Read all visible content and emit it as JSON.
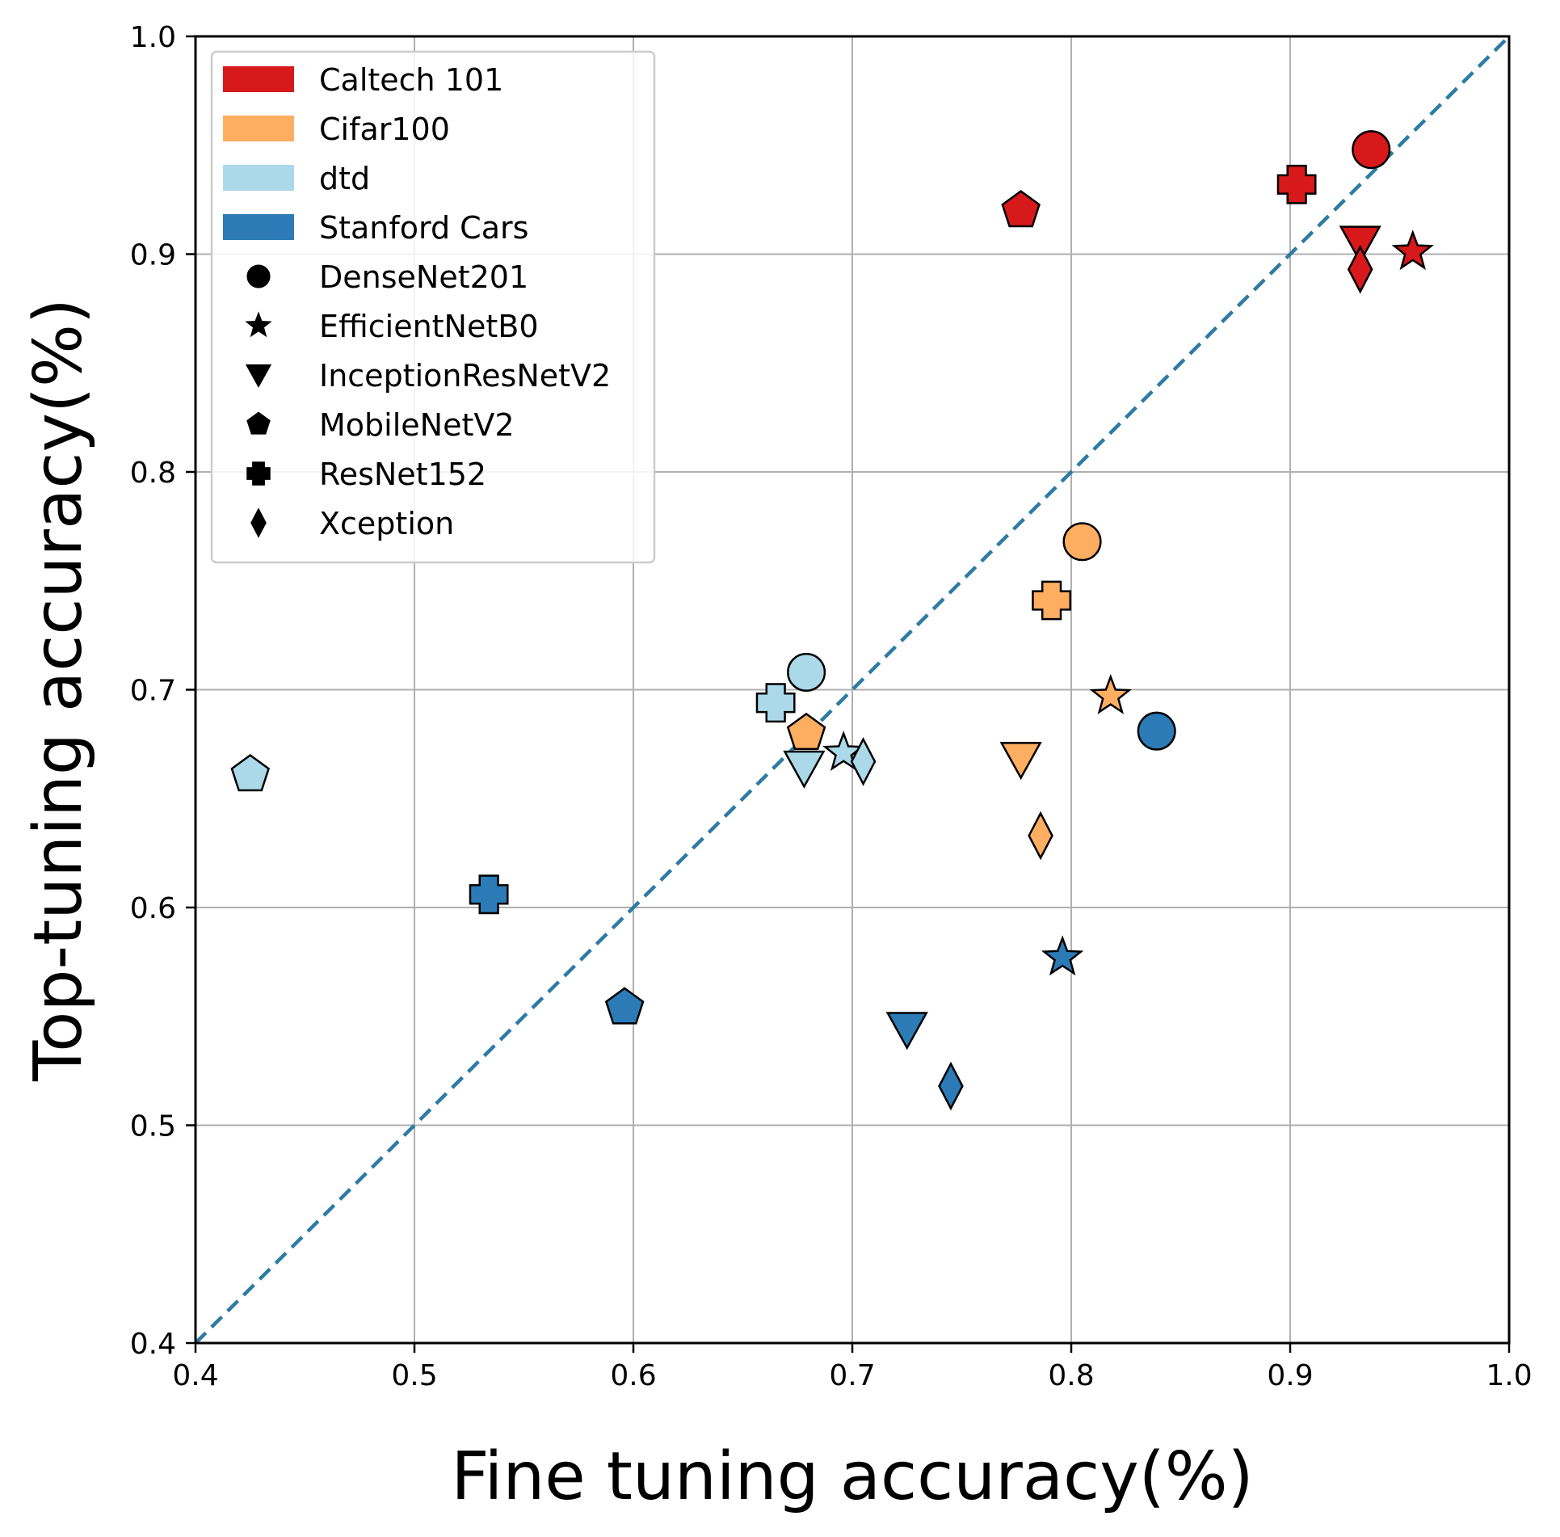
{
  "chart_data": {
    "type": "scatter",
    "title": "",
    "xlabel": "Fine tuning accuracy(%)",
    "ylabel": "Top-tuning accuracy(%)",
    "xlim": [
      0.4,
      1.0
    ],
    "ylim": [
      0.4,
      1.0
    ],
    "xticks": [
      "0.4",
      "0.5",
      "0.6",
      "0.7",
      "0.8",
      "0.9",
      "1.0"
    ],
    "yticks": [
      "0.4",
      "0.5",
      "0.6",
      "0.7",
      "0.8",
      "0.9",
      "1.0"
    ],
    "grid": true,
    "legend_position": "top-left",
    "reference_line": {
      "x": [
        0.4,
        1.0
      ],
      "y": [
        0.4,
        1.0
      ],
      "style": "dashed",
      "color": "#2e7ba3"
    },
    "datasets": [
      {
        "name": "Caltech 101",
        "color": "#d7191c"
      },
      {
        "name": "Cifar100",
        "color": "#fdae61"
      },
      {
        "name": "dtd",
        "color": "#abd9e9"
      },
      {
        "name": "Stanford Cars",
        "color": "#2c7bb6"
      }
    ],
    "models": [
      {
        "name": "DenseNet201",
        "marker": "circle"
      },
      {
        "name": "EfficientNetB0",
        "marker": "star"
      },
      {
        "name": "InceptionResNetV2",
        "marker": "triangle-down"
      },
      {
        "name": "MobileNetV2",
        "marker": "pentagon"
      },
      {
        "name": "ResNet152",
        "marker": "x"
      },
      {
        "name": "Xception",
        "marker": "diamond"
      }
    ],
    "points": [
      {
        "dataset": "Caltech 101",
        "model": "DenseNet201",
        "x": 0.937,
        "y": 0.948
      },
      {
        "dataset": "Caltech 101",
        "model": "EfficientNetB0",
        "x": 0.956,
        "y": 0.901
      },
      {
        "dataset": "Caltech 101",
        "model": "InceptionResNetV2",
        "x": 0.932,
        "y": 0.905
      },
      {
        "dataset": "Caltech 101",
        "model": "MobileNetV2",
        "x": 0.777,
        "y": 0.92
      },
      {
        "dataset": "Caltech 101",
        "model": "ResNet152",
        "x": 0.903,
        "y": 0.932
      },
      {
        "dataset": "Caltech 101",
        "model": "Xception",
        "x": 0.932,
        "y": 0.893
      },
      {
        "dataset": "Cifar100",
        "model": "DenseNet201",
        "x": 0.805,
        "y": 0.768
      },
      {
        "dataset": "Cifar100",
        "model": "EfficientNetB0",
        "x": 0.818,
        "y": 0.697
      },
      {
        "dataset": "Cifar100",
        "model": "InceptionResNetV2",
        "x": 0.777,
        "y": 0.668
      },
      {
        "dataset": "Cifar100",
        "model": "MobileNetV2",
        "x": 0.679,
        "y": 0.68
      },
      {
        "dataset": "Cifar100",
        "model": "ResNet152",
        "x": 0.791,
        "y": 0.741
      },
      {
        "dataset": "Cifar100",
        "model": "Xception",
        "x": 0.786,
        "y": 0.633
      },
      {
        "dataset": "dtd",
        "model": "DenseNet201",
        "x": 0.679,
        "y": 0.708
      },
      {
        "dataset": "dtd",
        "model": "EfficientNetB0",
        "x": 0.696,
        "y": 0.671
      },
      {
        "dataset": "dtd",
        "model": "InceptionResNetV2",
        "x": 0.678,
        "y": 0.664
      },
      {
        "dataset": "dtd",
        "model": "MobileNetV2",
        "x": 0.425,
        "y": 0.661
      },
      {
        "dataset": "dtd",
        "model": "ResNet152",
        "x": 0.665,
        "y": 0.694
      },
      {
        "dataset": "dtd",
        "model": "Xception",
        "x": 0.705,
        "y": 0.667
      },
      {
        "dataset": "Stanford Cars",
        "model": "DenseNet201",
        "x": 0.839,
        "y": 0.681
      },
      {
        "dataset": "Stanford Cars",
        "model": "EfficientNetB0",
        "x": 0.796,
        "y": 0.577
      },
      {
        "dataset": "Stanford Cars",
        "model": "InceptionResNetV2",
        "x": 0.725,
        "y": 0.544
      },
      {
        "dataset": "Stanford Cars",
        "model": "MobileNetV2",
        "x": 0.596,
        "y": 0.554
      },
      {
        "dataset": "Stanford Cars",
        "model": "ResNet152",
        "x": 0.534,
        "y": 0.606
      },
      {
        "dataset": "Stanford Cars",
        "model": "Xception",
        "x": 0.745,
        "y": 0.518
      }
    ]
  }
}
